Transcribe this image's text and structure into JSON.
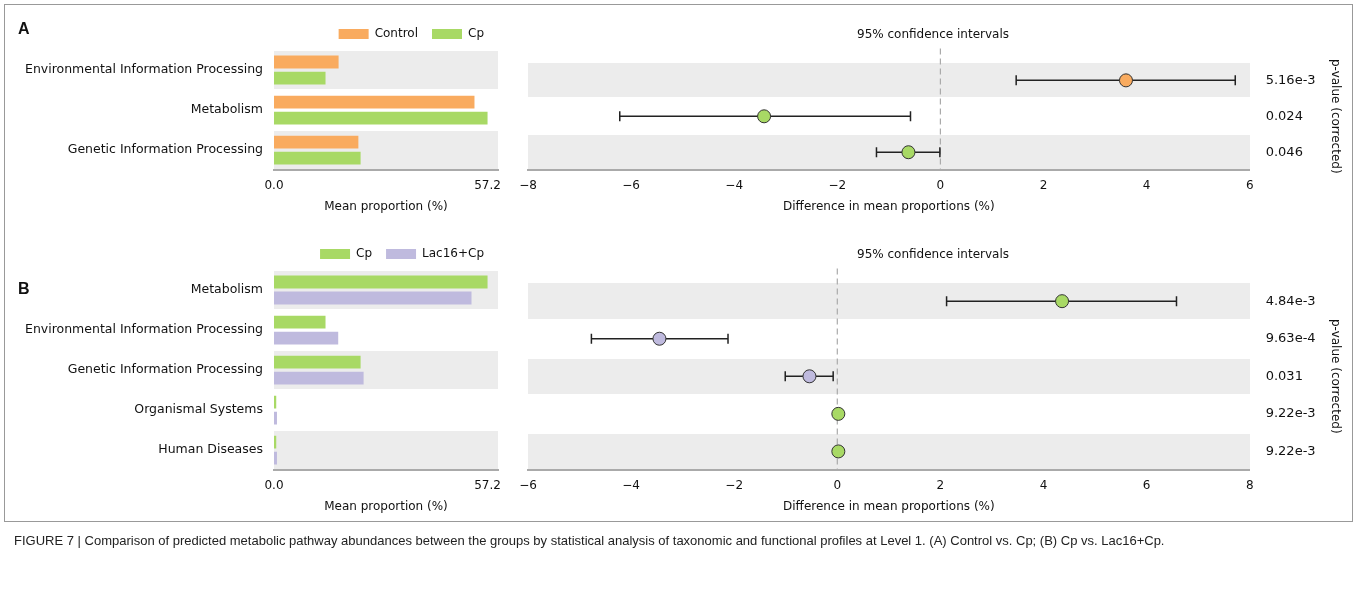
{
  "chart_data": [
    {
      "type": "bar",
      "orientation": "horizontal",
      "annotations": [
        "A"
      ],
      "categories": [
        "Environmental Information Processing",
        "Metabolism",
        "Genetic Information Processing"
      ],
      "series": [
        {
          "name": "Control",
          "color": "#f9ab5f",
          "values": [
            17.3,
            53.7,
            22.6
          ]
        },
        {
          "name": "Cp",
          "color": "#a8d965",
          "values": [
            13.8,
            57.2,
            23.2
          ]
        }
      ],
      "xlim": [
        0,
        60
      ],
      "xticks": [
        {
          "value": 0,
          "label": "0.0"
        },
        57.2
      ],
      "xlabel": "Mean proportion (%)",
      "legend": "top"
    },
    {
      "type": "scatter",
      "orientation": "horizontal",
      "title": "95% confidence intervals",
      "values": [
        3.6,
        -3.42,
        -0.62
      ],
      "errors": [
        [
          1.47,
          5.72
        ],
        [
          -6.22,
          -0.58
        ],
        [
          -1.24,
          -0.01
        ]
      ],
      "colors": [
        "#f9ab5f",
        "#a8d965",
        "#a8d965"
      ],
      "y2_categories": [
        "5.16e-3",
        "0.024",
        "0.046"
      ],
      "y2label": "p-value (corrected)",
      "ref_lines": [
        {
          "axis": "x",
          "value": 0,
          "line_style": "dashed",
          "color": "#aaaaaa"
        }
      ],
      "xlim": [
        -8,
        6
      ],
      "xticks": [
        {
          "value": -8,
          "label": "−8"
        },
        {
          "value": -6,
          "label": "−6"
        },
        {
          "value": -4,
          "label": "−4"
        },
        {
          "value": -2,
          "label": "−2"
        },
        0,
        2,
        4,
        6
      ],
      "xlabel": "Difference in mean proportions (%)",
      "marker": "circle"
    },
    {
      "type": "bar",
      "orientation": "horizontal",
      "annotations": [
        "B"
      ],
      "categories": [
        "Metabolism",
        "Environmental Information Processing",
        "Genetic Information Processing",
        "Organismal Systems",
        "Human Diseases"
      ],
      "series": [
        {
          "name": "Cp",
          "color": "#a8d965",
          "values": [
            57.2,
            13.8,
            23.2,
            0.6,
            0.6
          ]
        },
        {
          "name": "Lac16+Cp",
          "color": "#bfbade",
          "values": [
            52.9,
            17.2,
            24.0,
            0.8,
            0.8
          ]
        }
      ],
      "xlim": [
        0,
        60
      ],
      "xticks": [
        {
          "value": 0,
          "label": "0.0"
        },
        57.2
      ],
      "xlabel": "Mean proportion (%)",
      "legend": "top"
    },
    {
      "type": "scatter",
      "orientation": "horizontal",
      "title": "95% confidence intervals",
      "values": [
        4.36,
        -3.45,
        -0.54,
        0.02,
        0.02
      ],
      "errors": [
        [
          2.12,
          6.58
        ],
        [
          -4.77,
          -2.12
        ],
        [
          -1.01,
          -0.08
        ],
        null,
        null
      ],
      "colors": [
        "#a8d965",
        "#bfbade",
        "#bfbade",
        "#a8d965",
        "#a8d965"
      ],
      "y2_categories": [
        "4.84e-3",
        "9.63e-4",
        "0.031",
        "9.22e-3",
        "9.22e-3"
      ],
      "y2label": "p-value (corrected)",
      "ref_lines": [
        {
          "axis": "x",
          "value": 0,
          "line_style": "dashed",
          "color": "#aaaaaa"
        }
      ],
      "xlim": [
        -6,
        8
      ],
      "xticks": [
        {
          "value": -6,
          "label": "−6"
        },
        {
          "value": -4,
          "label": "−4"
        },
        {
          "value": -2,
          "label": "−2"
        },
        0,
        2,
        4,
        6,
        8
      ],
      "xlabel": "Difference in mean proportions (%)",
      "marker": "circle",
      "annotations": [
        "FIGURE 7 | Comparison of predicted metabolic pathway abundances between the groups by statistical analysis of taxonomic and functional profiles at Level 1. (A) Control vs. Cp; (B) Cp vs. Lac16+Cp."
      ]
    }
  ]
}
